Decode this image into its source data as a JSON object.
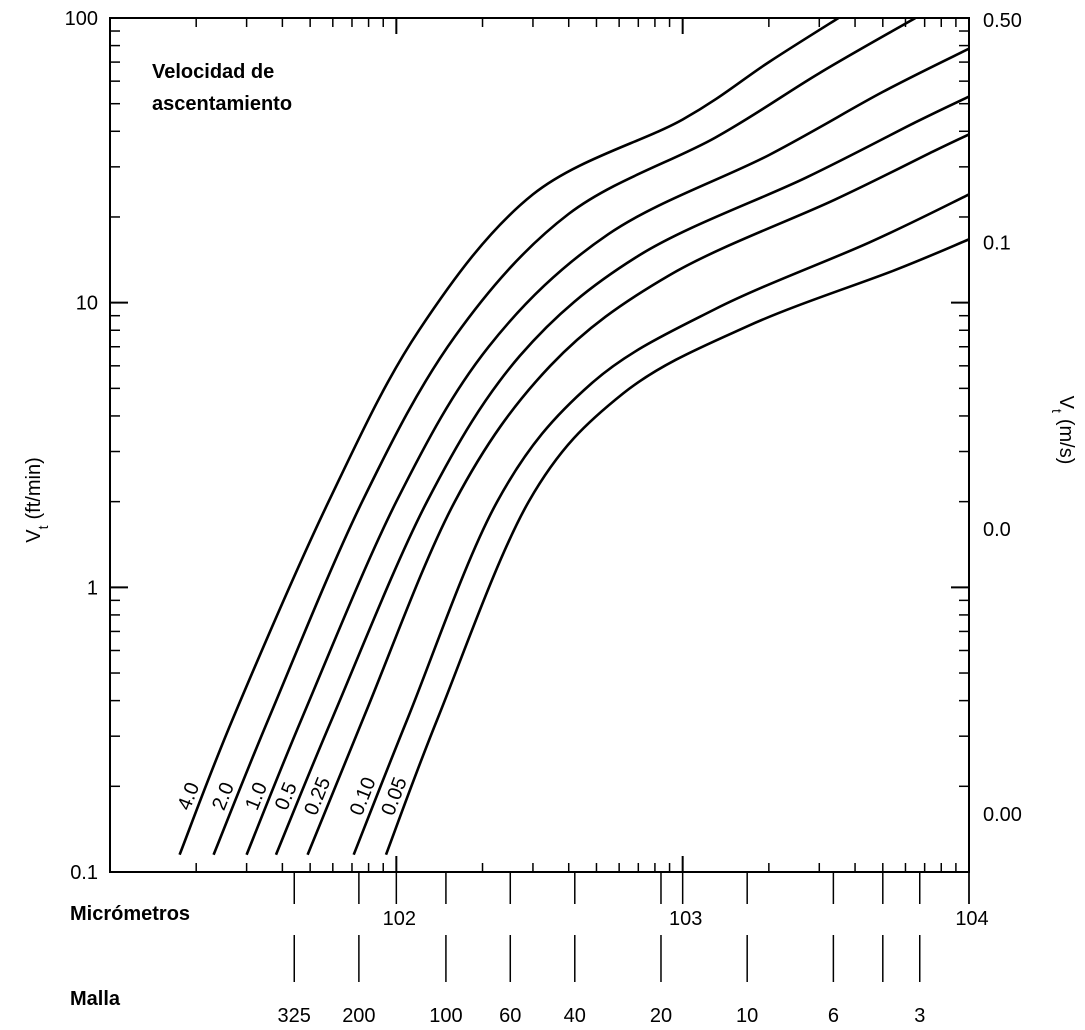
{
  "chart_data": {
    "type": "line",
    "title": "Velocidad de ascentamiento",
    "title_lines": [
      "Velocidad de",
      "ascentamiento"
    ],
    "ylabel": "V",
    "ylabel_sub": "t",
    "ylabel_unit": "(ft/min)",
    "y2label": "V",
    "y2label_sub": "t",
    "y2label_unit": "(m/s)",
    "y_scale": "log",
    "ylim": [
      0.1,
      100
    ],
    "y_ticks": [
      "100",
      "10",
      "1",
      "0.1"
    ],
    "y2_ticks": [
      {
        "label": "0.50",
        "ft_min": 98.4
      },
      {
        "label": "0.1",
        "ft_min": 16.3
      },
      {
        "label": "0.0",
        "ft_min": 1.6
      },
      {
        "label": "0.00",
        "ft_min": 0.16
      }
    ],
    "x_scale": "log",
    "xlim": [
      10,
      10000
    ],
    "x_axis_label": "Micrómetros",
    "x_ticks": [
      {
        "label": "102",
        "value": 100
      },
      {
        "label": "103",
        "value": 1000
      },
      {
        "label": "104",
        "value": 10000
      }
    ],
    "mesh_axis_label": "Malla",
    "mesh_ticks": [
      {
        "label": "325",
        "value": 44
      },
      {
        "label": "200",
        "value": 74
      },
      {
        "label": "100",
        "value": 149
      },
      {
        "label": "60",
        "value": 250
      },
      {
        "label": "40",
        "value": 420
      },
      {
        "label": "20",
        "value": 840
      },
      {
        "label": "10",
        "value": 1680
      },
      {
        "label": "6",
        "value": 3360
      },
      {
        "label": "",
        "value": 5000
      },
      {
        "label": "3",
        "value": 6730
      }
    ],
    "series": [
      {
        "name": "4.0",
        "points": [
          [
            17.5,
            0.115
          ],
          [
            27,
            0.35
          ],
          [
            58,
            2.0
          ],
          [
            120,
            8.0
          ],
          [
            300,
            24
          ],
          [
            1000,
            44
          ],
          [
            2000,
            70
          ],
          [
            3500,
            100
          ]
        ]
      },
      {
        "name": "2.0",
        "points": [
          [
            23,
            0.115
          ],
          [
            36,
            0.35
          ],
          [
            76,
            2.0
          ],
          [
            160,
            7.6
          ],
          [
            400,
            20.5
          ],
          [
            1300,
            38
          ],
          [
            3000,
            64
          ],
          [
            6500,
            100
          ]
        ]
      },
      {
        "name": "1.0",
        "points": [
          [
            30,
            0.115
          ],
          [
            47,
            0.35
          ],
          [
            100,
            2.0
          ],
          [
            210,
            7.0
          ],
          [
            550,
            17.4
          ],
          [
            2000,
            33
          ],
          [
            5000,
            55
          ],
          [
            10000,
            78
          ]
        ]
      },
      {
        "name": "0.5",
        "points": [
          [
            38,
            0.115
          ],
          [
            60,
            0.35
          ],
          [
            128,
            2.0
          ],
          [
            270,
            6.5
          ],
          [
            700,
            14.6
          ],
          [
            2700,
            27.5
          ],
          [
            6500,
            43
          ],
          [
            10000,
            53
          ]
        ]
      },
      {
        "name": "0.25",
        "points": [
          [
            49,
            0.115
          ],
          [
            77,
            0.35
          ],
          [
            160,
            2.0
          ],
          [
            345,
            6.0
          ],
          [
            900,
            12.5
          ],
          [
            3400,
            23
          ],
          [
            7500,
            34
          ],
          [
            10000,
            39
          ]
        ]
      },
      {
        "name": "0.10",
        "points": [
          [
            71,
            0.115
          ],
          [
            110,
            0.35
          ],
          [
            225,
            2.0
          ],
          [
            480,
            5.2
          ],
          [
            1300,
            9.5
          ],
          [
            4500,
            16.3
          ],
          [
            10000,
            24
          ]
        ]
      },
      {
        "name": "0.05",
        "points": [
          [
            92,
            0.115
          ],
          [
            140,
            0.35
          ],
          [
            290,
            2.0
          ],
          [
            620,
            4.8
          ],
          [
            1700,
            8.3
          ],
          [
            5500,
            13.0
          ],
          [
            10000,
            16.7
          ]
        ]
      }
    ]
  }
}
